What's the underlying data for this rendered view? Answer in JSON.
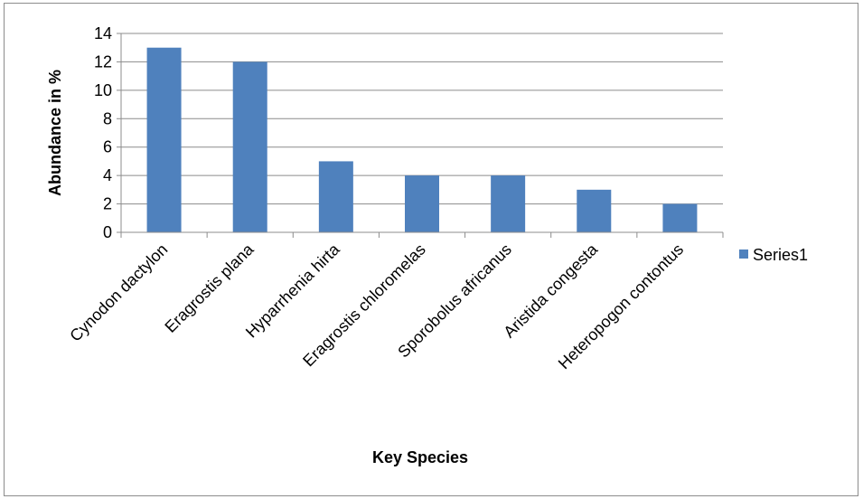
{
  "chart_data": {
    "type": "bar",
    "title": "",
    "xlabel": "Key Species",
    "ylabel": "Abundance in %",
    "categories": [
      "Cynodon dactylon",
      "Eragrostis plana",
      "Hyparrhenia hirta",
      "Eragrostis chloromelas",
      "Sporobolus africanus",
      "Aristida congesta",
      "Heteropogon contontus"
    ],
    "series": [
      {
        "name": "Series1",
        "color": "#4f81bd",
        "values": [
          13,
          12,
          5,
          4,
          4,
          3,
          2
        ]
      }
    ],
    "ylim": [
      0,
      14
    ],
    "yticks": [
      "0",
      "2",
      "4",
      "6",
      "8",
      "10",
      "12",
      "14"
    ],
    "grid": true,
    "legend": "right"
  }
}
